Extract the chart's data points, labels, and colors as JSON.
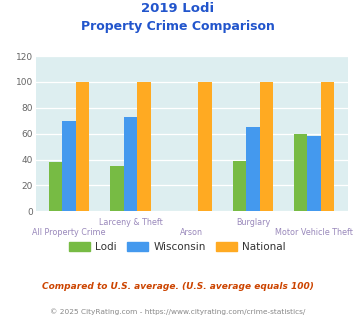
{
  "title_line1": "2019 Lodi",
  "title_line2": "Property Crime Comparison",
  "categories": [
    "All Property Crime",
    "Larceny & Theft",
    "Arson",
    "Burglary",
    "Motor Vehicle Theft"
  ],
  "x_labels_top": [
    "",
    "Larceny & Theft",
    "",
    "Burglary",
    ""
  ],
  "x_labels_bot": [
    "All Property Crime",
    "",
    "Arson",
    "",
    "Motor Vehicle Theft"
  ],
  "lodi": [
    38,
    35,
    0,
    39,
    60
  ],
  "wisconsin": [
    70,
    73,
    0,
    65,
    58
  ],
  "national": [
    100,
    100,
    100,
    100,
    100
  ],
  "lodi_color": "#77bb44",
  "wisconsin_color": "#4499ee",
  "national_color": "#ffaa22",
  "title_color": "#2255cc",
  "xlabel_color": "#9988bb",
  "ylabel_color": "#666666",
  "plot_bg": "#ddeef0",
  "ylim": [
    0,
    120
  ],
  "yticks": [
    0,
    20,
    40,
    60,
    80,
    100,
    120
  ],
  "legend_labels": [
    "Lodi",
    "Wisconsin",
    "National"
  ],
  "footnote1": "Compared to U.S. average. (U.S. average equals 100)",
  "footnote2": "© 2025 CityRating.com - https://www.cityrating.com/crime-statistics/",
  "footnote1_color": "#cc4400",
  "footnote2_color": "#888888",
  "bar_width": 0.22
}
